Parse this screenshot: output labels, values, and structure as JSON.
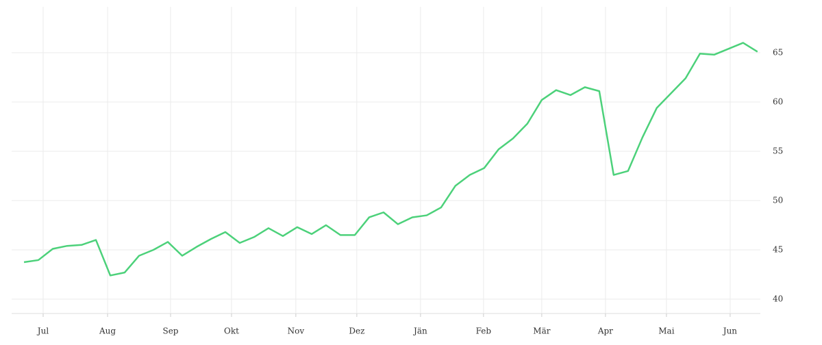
{
  "chart_data": {
    "type": "line",
    "x": [
      0,
      1,
      2,
      3,
      4,
      5,
      6,
      7,
      8,
      9,
      10,
      11,
      12,
      13,
      14,
      15,
      16,
      17,
      18,
      19,
      20,
      21,
      22,
      23,
      24,
      25,
      26,
      27,
      28,
      29,
      30,
      31,
      32,
      33,
      34,
      35,
      36,
      37,
      38,
      39,
      40,
      41,
      42,
      43,
      44,
      45,
      46,
      47,
      48,
      49,
      50,
      51
    ],
    "series": [
      {
        "color": "#4cd17a",
        "values": [
          43.75,
          43.96,
          45.1,
          45.4,
          45.5,
          46.0,
          42.4,
          42.7,
          44.4,
          45.0,
          45.8,
          44.4,
          45.3,
          46.1,
          46.8,
          45.7,
          46.3,
          47.2,
          46.4,
          47.3,
          46.6,
          47.5,
          46.5,
          46.5,
          48.3,
          48.8,
          47.6,
          48.3,
          48.5,
          49.3,
          51.5,
          52.6,
          53.3,
          55.2,
          56.3,
          57.8,
          60.2,
          61.2,
          60.7,
          61.5,
          61.1,
          52.6,
          53.0,
          56.4,
          59.4,
          60.9,
          62.4,
          64.9,
          64.8,
          65.4,
          66.0,
          65.1
        ]
      }
    ],
    "xlim": [
      -0.86,
      51.2
    ],
    "xticks": [
      {
        "value": 1.33,
        "label": "Jul"
      },
      {
        "value": 5.81,
        "label": "Aug"
      },
      {
        "value": 10.19,
        "label": "Sep"
      },
      {
        "value": 14.43,
        "label": "Okt"
      },
      {
        "value": 18.9,
        "label": "Nov"
      },
      {
        "value": 23.14,
        "label": "Dez"
      },
      {
        "value": 27.57,
        "label": "Jän"
      },
      {
        "value": 31.95,
        "label": "Feb"
      },
      {
        "value": 36.0,
        "label": "Mär"
      },
      {
        "value": 40.43,
        "label": "Apr"
      },
      {
        "value": 44.67,
        "label": "Mai"
      },
      {
        "value": 49.1,
        "label": "Jun"
      }
    ],
    "ylim": [
      38.54,
      69.65
    ],
    "yticks": [
      40,
      45,
      50,
      55,
      60,
      65
    ],
    "grid": true
  }
}
